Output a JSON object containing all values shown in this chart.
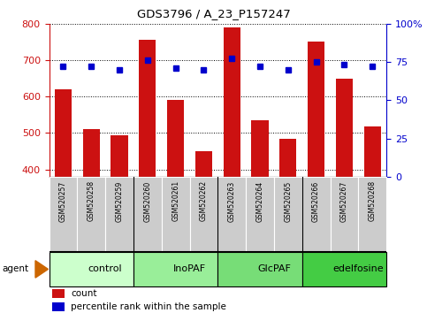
{
  "title": "GDS3796 / A_23_P157247",
  "samples": [
    "GSM520257",
    "GSM520258",
    "GSM520259",
    "GSM520260",
    "GSM520261",
    "GSM520262",
    "GSM520263",
    "GSM520264",
    "GSM520265",
    "GSM520266",
    "GSM520267",
    "GSM520268"
  ],
  "counts": [
    620,
    510,
    495,
    755,
    590,
    450,
    790,
    535,
    483,
    750,
    648,
    518
  ],
  "percentile_ranks": [
    72,
    72,
    70,
    76,
    71,
    70,
    77,
    72,
    70,
    75,
    73,
    72
  ],
  "groups": [
    {
      "label": "control",
      "start": 0,
      "end": 3,
      "color": "#ccffcc"
    },
    {
      "label": "InoPAF",
      "start": 3,
      "end": 6,
      "color": "#99ee99"
    },
    {
      "label": "GlcPAF",
      "start": 6,
      "end": 9,
      "color": "#77dd77"
    },
    {
      "label": "edelfosine",
      "start": 9,
      "end": 12,
      "color": "#44cc44"
    }
  ],
  "ylim_left": [
    380,
    800
  ],
  "ylim_right": [
    0,
    100
  ],
  "yticks_left": [
    400,
    500,
    600,
    700,
    800
  ],
  "yticks_right": [
    0,
    25,
    50,
    75,
    100
  ],
  "bar_color": "#cc1111",
  "dot_color": "#0000cc",
  "background_color": "#ffffff",
  "sample_box_color": "#cccccc",
  "agent_arrow_color": "#cc6600"
}
